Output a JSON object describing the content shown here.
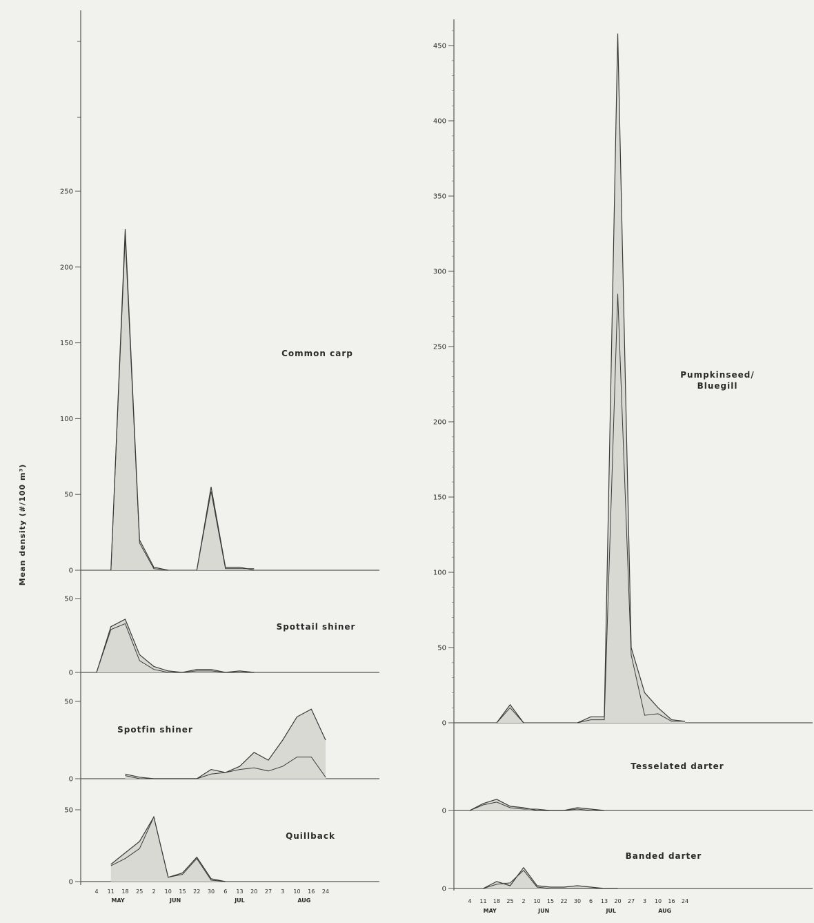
{
  "y_axis_label": "Mean density (#/100 m³)",
  "x_dates": [
    "4",
    "11",
    "18",
    "25",
    "2",
    "10",
    "15",
    "22",
    "30",
    "6",
    "13",
    "20",
    "27",
    "3",
    "10",
    "16",
    "24"
  ],
  "months": [
    "MAY",
    "JUN",
    "JUL",
    "AUG"
  ],
  "chart_data": [
    {
      "type": "area",
      "title": "Common carp",
      "yticks": [
        0,
        50,
        100,
        150,
        200,
        250
      ],
      "ylim": [
        0,
        250
      ],
      "series": [
        {
          "values": [
            null,
            0,
            225,
            20,
            2,
            0,
            null,
            0,
            55,
            2,
            2,
            0,
            null,
            null,
            null,
            null,
            null
          ]
        },
        {
          "values": [
            null,
            0,
            220,
            18,
            1,
            0,
            null,
            0,
            52,
            1,
            1,
            1,
            null,
            null,
            null,
            null,
            null
          ]
        }
      ]
    },
    {
      "type": "area",
      "title": "Spottail shiner",
      "yticks": [
        0,
        50
      ],
      "ylim": [
        0,
        50
      ],
      "series": [
        {
          "values": [
            0,
            31,
            36,
            12,
            4,
            1,
            0,
            2,
            2,
            0,
            1,
            0,
            null,
            null,
            null,
            null,
            null
          ]
        },
        {
          "values": [
            0,
            29,
            33,
            8,
            2,
            0,
            0,
            1,
            1,
            0,
            0,
            0,
            null,
            null,
            null,
            null,
            null
          ]
        }
      ]
    },
    {
      "type": "area",
      "title": "Spotfin shiner",
      "yticks": [
        0,
        50
      ],
      "ylim": [
        0,
        50
      ],
      "series": [
        {
          "values": [
            null,
            null,
            3,
            1,
            0,
            0,
            0,
            0,
            6,
            4,
            8,
            17,
            12,
            25,
            40,
            45,
            25
          ]
        },
        {
          "values": [
            null,
            null,
            2,
            0,
            0,
            0,
            0,
            0,
            3,
            4,
            6,
            7,
            5,
            8,
            14,
            14,
            1
          ]
        }
      ]
    },
    {
      "type": "area",
      "title": "Quillback",
      "yticks": [
        0,
        50
      ],
      "ylim": [
        0,
        50
      ],
      "series": [
        {
          "values": [
            null,
            12,
            20,
            28,
            45,
            3,
            6,
            17,
            2,
            0,
            null,
            null,
            null,
            null,
            null,
            null,
            null
          ]
        },
        {
          "values": [
            null,
            11,
            16,
            23,
            45,
            3,
            5,
            16,
            1,
            0,
            null,
            null,
            null,
            null,
            null,
            null,
            null
          ]
        }
      ]
    },
    {
      "type": "area",
      "title": "Pumpkinseed/ Bluegill",
      "yticks": [
        0,
        50,
        100,
        150,
        200,
        250,
        300,
        350,
        400,
        450
      ],
      "ylim": [
        0,
        450
      ],
      "series": [
        {
          "values": [
            null,
            null,
            0,
            12,
            0,
            null,
            null,
            null,
            0,
            4,
            4,
            458,
            50,
            20,
            10,
            2,
            1
          ]
        },
        {
          "values": [
            null,
            null,
            0,
            10,
            0,
            null,
            null,
            null,
            0,
            2,
            2,
            285,
            45,
            5,
            6,
            1,
            1
          ]
        }
      ]
    },
    {
      "type": "area",
      "title": "Tesselated darter",
      "yticks": [
        0
      ],
      "ylim": [
        0,
        50
      ],
      "series": [
        {
          "values": [
            0,
            5,
            8,
            3,
            2,
            0,
            0,
            0,
            2,
            1,
            0,
            null,
            null,
            null,
            null,
            null,
            null
          ]
        },
        {
          "values": [
            0,
            4,
            6,
            2,
            1,
            1,
            0,
            0,
            1,
            0,
            0,
            null,
            null,
            null,
            null,
            null,
            null
          ]
        }
      ]
    },
    {
      "type": "area",
      "title": "Banded darter",
      "yticks": [
        0
      ],
      "ylim": [
        0,
        50
      ],
      "series": [
        {
          "values": [
            null,
            0,
            5,
            2,
            15,
            2,
            1,
            1,
            2,
            1,
            0,
            0,
            null,
            null,
            null,
            null,
            null
          ]
        },
        {
          "values": [
            null,
            0,
            3,
            4,
            13,
            1,
            0,
            0,
            0,
            0,
            0,
            0,
            null,
            null,
            null,
            null,
            null
          ]
        }
      ]
    }
  ]
}
